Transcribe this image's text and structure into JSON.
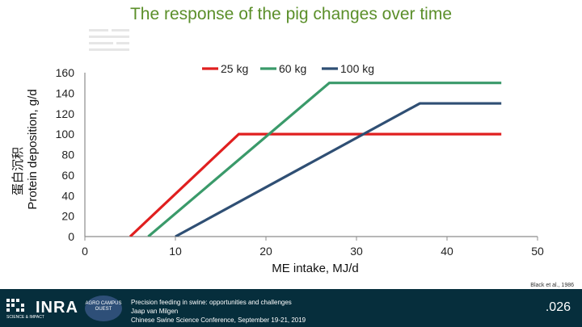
{
  "slide": {
    "title": "The response of the pig changes over time",
    "citation": "Black et al., 1986",
    "slide_number": ".026",
    "footer_lines": [
      "Precision feeding in swine: opportunities and challenges",
      "Jaap van Milgen",
      "Chinese Swine Science Conference, September 19-21, 2019"
    ],
    "logo_text": "INRA",
    "logo_subtext": "SCIENCE & IMPACT",
    "campus_logo_text": "AGRO CAMPUS OUEST"
  },
  "colors": {
    "title": "#5b8f2a",
    "footer": "#062e3c",
    "series_25": "#e01f1f",
    "series_60": "#3a9a6a",
    "series_100": "#2f4f74"
  },
  "chart_data": {
    "type": "line",
    "title": "The response of the pig changes over time",
    "xlabel": "ME intake, MJ/d",
    "ylabel": "Protein deposition, g/d",
    "ylabel_cn": "蛋白沉积",
    "xlim": [
      0,
      50
    ],
    "ylim": [
      0,
      160
    ],
    "xticks": [
      0,
      10,
      20,
      30,
      40,
      50
    ],
    "yticks": [
      0,
      20,
      40,
      60,
      80,
      100,
      120,
      140,
      160
    ],
    "grid": false,
    "legend_position": "top",
    "series": [
      {
        "name": "25 kg",
        "color": "#e01f1f",
        "x": [
          5,
          17,
          46
        ],
        "y": [
          0,
          100,
          100
        ]
      },
      {
        "name": "60 kg",
        "color": "#3a9a6a",
        "x": [
          7,
          27,
          46
        ],
        "y": [
          0,
          150,
          150
        ]
      },
      {
        "name": "100 kg",
        "color": "#2f4f74",
        "x": [
          10,
          37,
          46
        ],
        "y": [
          0,
          130,
          130
        ]
      }
    ]
  }
}
